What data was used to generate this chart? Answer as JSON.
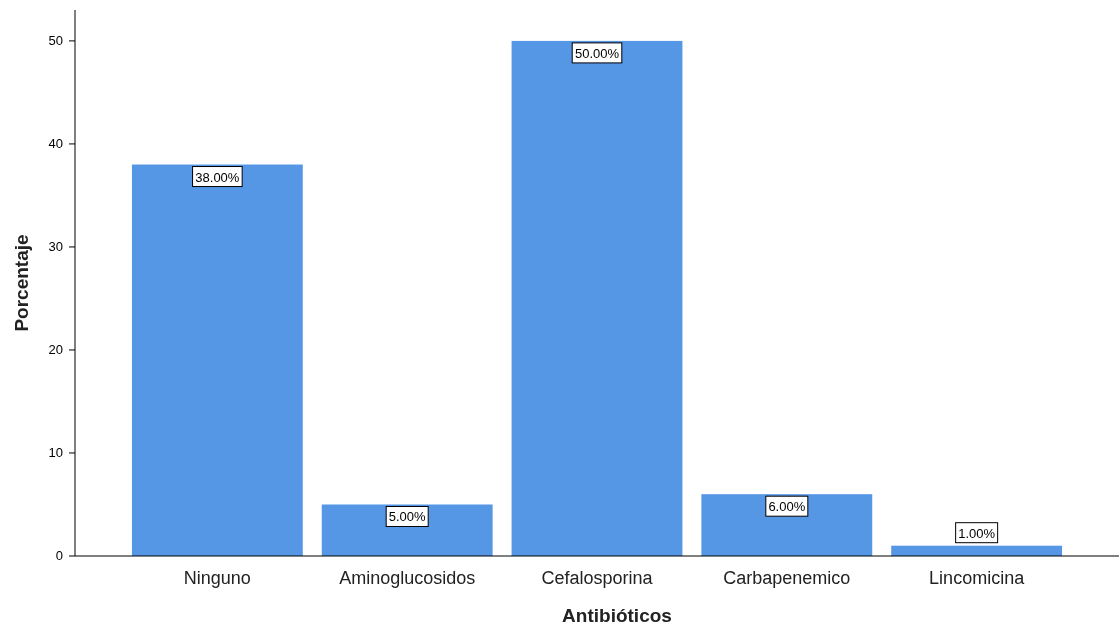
{
  "chart_data": {
    "type": "bar",
    "xlabel": "Antibióticos",
    "ylabel": "Porcentaje",
    "categories": [
      "Ninguno",
      "Aminoglucosidos",
      "Cefalosporina",
      "Carbapenemico",
      "Lincomicina"
    ],
    "values": [
      38,
      5,
      50,
      6,
      1
    ],
    "value_labels": [
      "38.00%",
      "5.00%",
      "50.00%",
      "6.00%",
      "1.00%"
    ],
    "color": "#5596e5",
    "ylim": [
      0,
      53
    ],
    "yticks": [
      0,
      10,
      20,
      30,
      40,
      50
    ],
    "grid": false
  }
}
